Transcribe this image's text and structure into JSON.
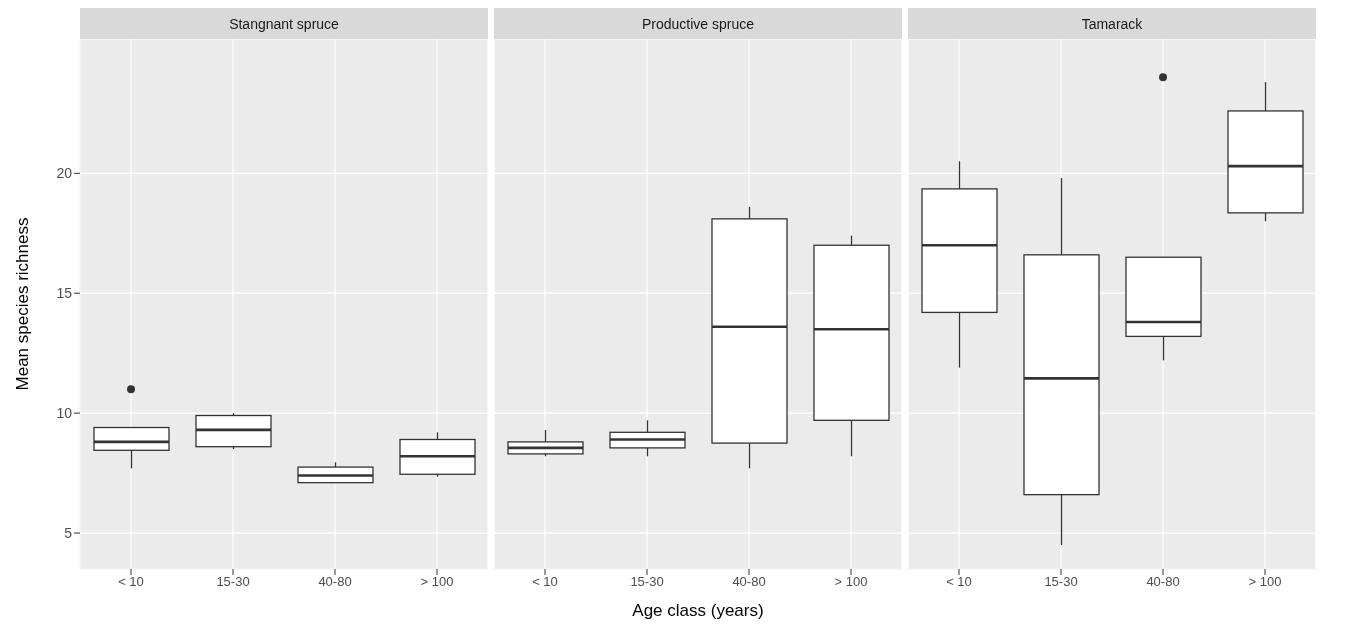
{
  "chart_data": [
    {
      "type": "box",
      "title": "Stangnant spruce",
      "ylabel": "Mean species richness",
      "categories": [
        "< 10",
        "15-30",
        "40-80",
        "> 100"
      ],
      "ylim": [
        3.5,
        25.6
      ],
      "yticks": [
        5,
        10,
        15,
        20
      ],
      "grid": true,
      "boxes": [
        {
          "low": 7.7,
          "q1": 8.45,
          "median": 8.8,
          "q3": 9.4,
          "high": 9.4,
          "outliers": [
            11.0
          ]
        },
        {
          "low": 8.5,
          "q1": 8.6,
          "median": 9.3,
          "q3": 9.9,
          "high": 10.0
        },
        {
          "low": 7.1,
          "q1": 7.1,
          "median": 7.4,
          "q3": 7.75,
          "high": 7.95
        },
        {
          "low": 7.35,
          "q1": 7.45,
          "median": 8.2,
          "q3": 8.9,
          "high": 9.2
        }
      ]
    },
    {
      "type": "box",
      "title": "Productive spruce",
      "xlabel": "Age class (years)",
      "categories": [
        "< 10",
        "15-30",
        "40-80",
        "> 100"
      ],
      "ylim": [
        3.5,
        25.6
      ],
      "yticks": [
        5,
        10,
        15,
        20
      ],
      "grid": true,
      "tick_labels": "x",
      "boxes": [
        {
          "low": 8.2,
          "q1": 8.3,
          "median": 8.55,
          "q3": 8.8,
          "high": 9.3
        },
        {
          "low": 8.2,
          "q1": 8.55,
          "median": 8.9,
          "q3": 9.2,
          "high": 9.7
        },
        {
          "low": 7.7,
          "q1": 8.75,
          "median": 13.6,
          "q3": 18.1,
          "high": 18.6
        },
        {
          "low": 8.2,
          "q1": 9.7,
          "median": 13.5,
          "q3": 17.0,
          "high": 17.4
        }
      ]
    },
    {
      "type": "box",
      "title": "Tamarack",
      "categories": [
        "< 10",
        "15-30",
        "40-80",
        "> 100"
      ],
      "ylim": [
        3.5,
        25.6
      ],
      "yticks": [
        5,
        10,
        15,
        20
      ],
      "grid": true,
      "tick_labels": "x",
      "boxes": [
        {
          "low": 11.9,
          "q1": 14.2,
          "median": 17.0,
          "q3": 19.35,
          "high": 20.5
        },
        {
          "low": 4.5,
          "q1": 6.6,
          "median": 11.45,
          "q3": 16.6,
          "high": 19.8
        },
        {
          "low": 12.2,
          "q1": 13.2,
          "median": 13.8,
          "q3": 16.5,
          "high": 16.5,
          "outliers": [
            24.0
          ]
        },
        {
          "low": 18.0,
          "q1": 18.35,
          "median": 20.3,
          "q3": 22.6,
          "high": 23.8
        }
      ]
    }
  ]
}
